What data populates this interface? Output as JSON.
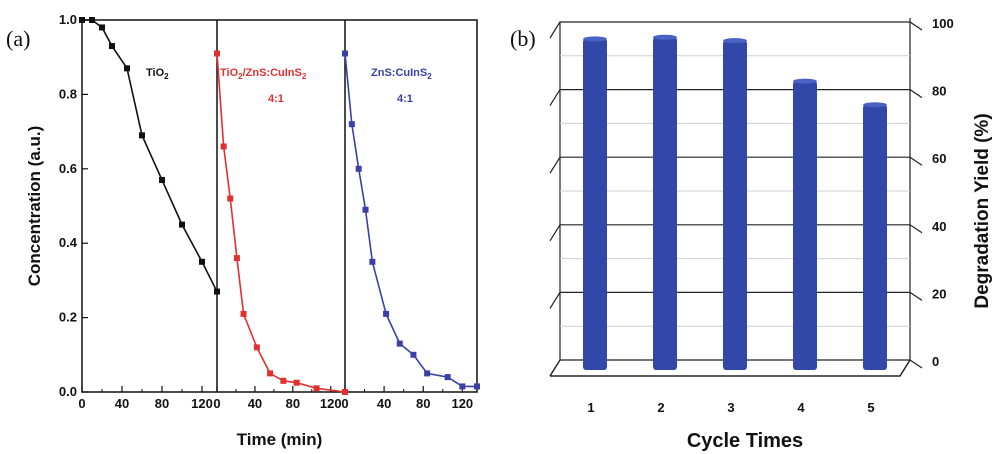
{
  "chart_data": [
    {
      "panel_label": "(a)",
      "type": "line",
      "xlabel": "Time (min)",
      "ylabel": "Concentration (a.u.)",
      "ylim": [
        0.0,
        1.0
      ],
      "yticks": [
        "0.0",
        "0.2",
        "0.4",
        "0.6",
        "0.8",
        "1.0"
      ],
      "xticks": [
        [
          "0",
          "40",
          "80",
          "120"
        ],
        [
          "0",
          "40",
          "80",
          "120"
        ],
        [
          "0",
          "40",
          "80",
          "120"
        ]
      ],
      "subplots": [
        {
          "color": "#111111",
          "label_lines": [
            "TiO",
            "2",
            ""
          ],
          "label_line2": "",
          "x": [
            0,
            10,
            20,
            30,
            45,
            60,
            80,
            100,
            120,
            135
          ],
          "y": [
            1.0,
            1.0,
            0.98,
            0.93,
            0.87,
            0.69,
            0.57,
            0.45,
            0.35,
            0.27
          ]
        },
        {
          "color": "#e03030",
          "label_lines": [
            "TiO",
            "2",
            "/ZnS:CuInS",
            "2"
          ],
          "label_line2": "4:1",
          "x": [
            0,
            7,
            14,
            21,
            28,
            42,
            56,
            70,
            84,
            105,
            135
          ],
          "y": [
            0.91,
            0.66,
            0.52,
            0.36,
            0.21,
            0.12,
            0.05,
            0.03,
            0.025,
            0.01,
            0.0
          ]
        },
        {
          "color": "#3a40a8",
          "label_lines": [
            "ZnS:CuInS",
            "2",
            ""
          ],
          "label_line2": "4:1",
          "x": [
            0,
            7,
            14,
            21,
            28,
            42,
            56,
            70,
            84,
            105,
            120,
            135
          ],
          "y": [
            0.91,
            0.72,
            0.6,
            0.49,
            0.35,
            0.21,
            0.13,
            0.1,
            0.05,
            0.04,
            0.015,
            0.015
          ]
        }
      ]
    },
    {
      "panel_label": "(b)",
      "type": "bar",
      "xlabel": "Cycle Times",
      "ylabel": "Degradation Yield (%)",
      "ylim": [
        0,
        100
      ],
      "yticks": [
        "0",
        "20",
        "40",
        "60",
        "80",
        "100"
      ],
      "categories": [
        "1",
        "2",
        "3",
        "4",
        "5"
      ],
      "values": [
        95,
        95.5,
        94.5,
        82.5,
        75.5
      ],
      "color": "#3248a8"
    }
  ]
}
